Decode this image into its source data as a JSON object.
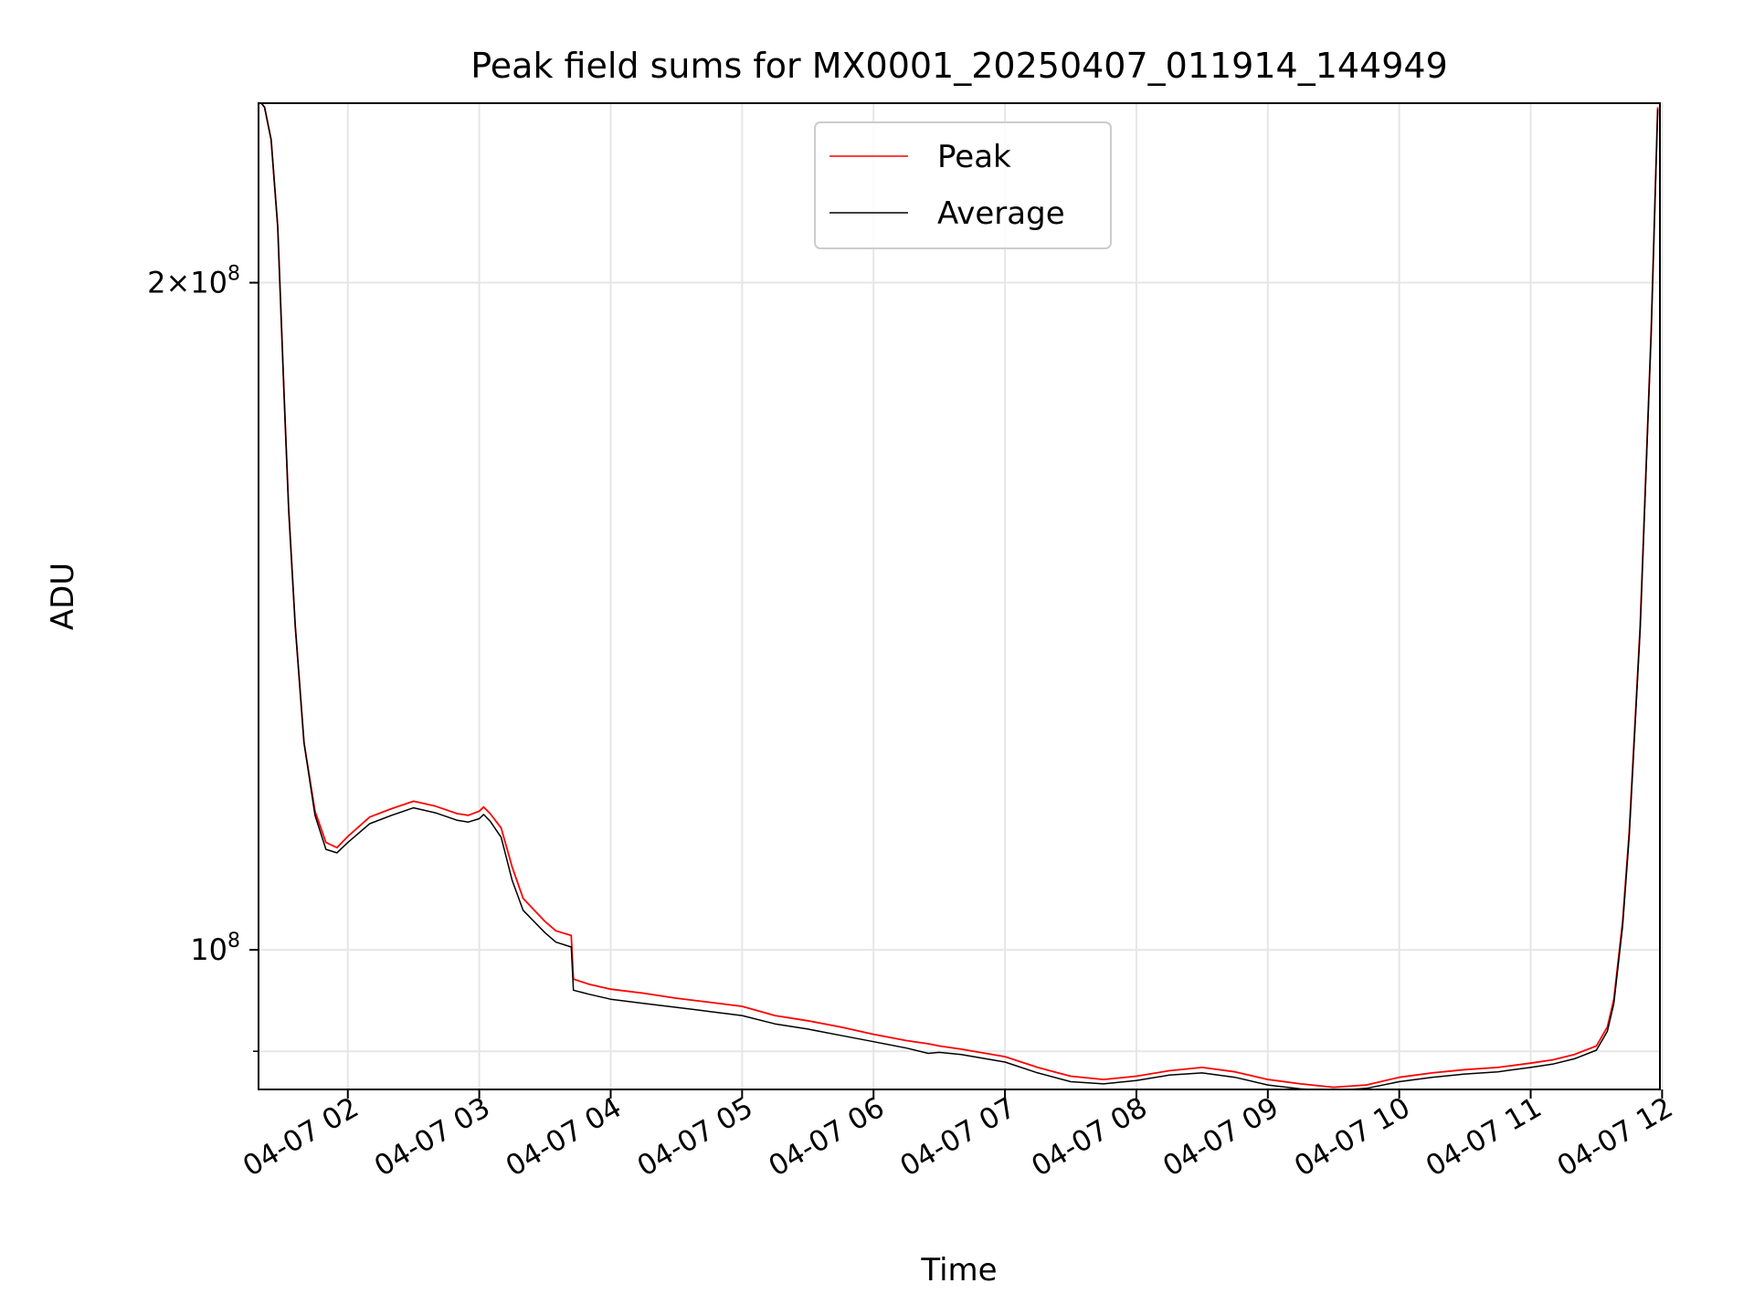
{
  "chart_data": {
    "type": "line",
    "title": "Peak field sums for MX0001_20250407_011914_144949",
    "xlabel": "Time",
    "ylabel": "ADU",
    "yscale": "log",
    "grid": true,
    "legend_position": "upper center",
    "xlim": [
      "2025-04-07 01:19:14",
      "2025-04-07 11:59:00"
    ],
    "ylim": [
      86500000,
      241000000
    ],
    "x_ticks": [
      "04-07 02",
      "04-07 03",
      "04-07 04",
      "04-07 05",
      "04-07 06",
      "04-07 07",
      "04-07 08",
      "04-07 09",
      "04-07 10",
      "04-07 11",
      "04-07 12"
    ],
    "y_ticks": [
      {
        "value": 100000000,
        "mantissa": "",
        "exponent": "8"
      },
      {
        "value": 200000000,
        "mantissa": "2",
        "exponent": "8"
      }
    ],
    "series": [
      {
        "name": "Peak",
        "color": "#ff0000",
        "x": [
          "01:19",
          "01:22",
          "01:25",
          "01:28",
          "01:31",
          "01:33",
          "01:36",
          "01:40",
          "01:45",
          "01:50",
          "01:55",
          "02:00",
          "02:10",
          "02:20",
          "02:30",
          "02:40",
          "02:50",
          "02:55",
          "03:00",
          "03:02",
          "03:05",
          "03:10",
          "03:15",
          "03:20",
          "03:30",
          "03:35",
          "03:42",
          "03:43",
          "03:50",
          "04:00",
          "04:15",
          "04:30",
          "04:45",
          "05:00",
          "05:15",
          "05:30",
          "05:45",
          "06:00",
          "06:15",
          "06:25",
          "06:30",
          "06:40",
          "07:00",
          "07:15",
          "07:30",
          "07:45",
          "08:00",
          "08:15",
          "08:30",
          "08:45",
          "09:00",
          "09:15",
          "09:30",
          "09:45",
          "10:00",
          "10:15",
          "10:30",
          "10:45",
          "11:00",
          "11:10",
          "11:20",
          "11:30",
          "11:35",
          "11:38",
          "11:42",
          "11:45",
          "11:50",
          "11:55",
          "11:58"
        ],
        "y": [
          242000000,
          240000000,
          232000000,
          212000000,
          177000000,
          158000000,
          140000000,
          124000000,
          115500000,
          111800000,
          111200000,
          112500000,
          114800000,
          115800000,
          116700000,
          116100000,
          115200000,
          115000000,
          115500000,
          116000000,
          115200000,
          113500000,
          109000000,
          105500000,
          103000000,
          102000000,
          101500000,
          97000000,
          96500000,
          96000000,
          95600000,
          95100000,
          94700000,
          94300000,
          93400000,
          92900000,
          92300000,
          91600000,
          91000000,
          90700000,
          90500000,
          90200000,
          89500000,
          88500000,
          87700000,
          87400000,
          87700000,
          88200000,
          88500000,
          88100000,
          87400000,
          87000000,
          86700000,
          86900000,
          87600000,
          88000000,
          88300000,
          88500000,
          88900000,
          89200000,
          89700000,
          90500000,
          92300000,
          95000000,
          103000000,
          113000000,
          140000000,
          190000000,
          240000000
        ]
      },
      {
        "name": "Average",
        "color": "#000000",
        "x": [
          "01:19",
          "01:22",
          "01:25",
          "01:28",
          "01:31",
          "01:33",
          "01:36",
          "01:40",
          "01:45",
          "01:50",
          "01:55",
          "02:00",
          "02:10",
          "02:20",
          "02:30",
          "02:40",
          "02:50",
          "02:55",
          "03:00",
          "03:02",
          "03:05",
          "03:10",
          "03:15",
          "03:20",
          "03:30",
          "03:35",
          "03:42",
          "03:43",
          "03:50",
          "04:00",
          "04:15",
          "04:30",
          "04:45",
          "05:00",
          "05:15",
          "05:30",
          "05:45",
          "06:00",
          "06:15",
          "06:25",
          "06:30",
          "06:40",
          "07:00",
          "07:15",
          "07:30",
          "07:45",
          "08:00",
          "08:15",
          "08:30",
          "08:45",
          "09:00",
          "09:15",
          "09:30",
          "09:45",
          "10:00",
          "10:15",
          "10:30",
          "10:45",
          "11:00",
          "11:10",
          "11:20",
          "11:30",
          "11:35",
          "11:38",
          "11:42",
          "11:45",
          "11:50",
          "11:55",
          "11:58"
        ],
        "y": [
          242000000,
          240000000,
          232000000,
          212000000,
          177000000,
          158000000,
          140000000,
          124000000,
          115000000,
          111000000,
          110600000,
          111800000,
          114000000,
          115000000,
          115900000,
          115300000,
          114400000,
          114200000,
          114600000,
          115100000,
          114300000,
          112400000,
          107500000,
          104200000,
          101800000,
          100800000,
          100300000,
          95900000,
          95500000,
          95000000,
          94600000,
          94200000,
          93800000,
          93400000,
          92600000,
          92100000,
          91500000,
          90900000,
          90300000,
          89800000,
          89900000,
          89700000,
          89000000,
          88000000,
          87200000,
          87000000,
          87300000,
          87800000,
          88000000,
          87600000,
          86900000,
          86550000,
          86400000,
          86600000,
          87200000,
          87600000,
          87900000,
          88100000,
          88500000,
          88800000,
          89300000,
          90100000,
          91900000,
          94600000,
          102500000,
          112500000,
          139500000,
          189500000,
          239500000
        ]
      }
    ]
  }
}
